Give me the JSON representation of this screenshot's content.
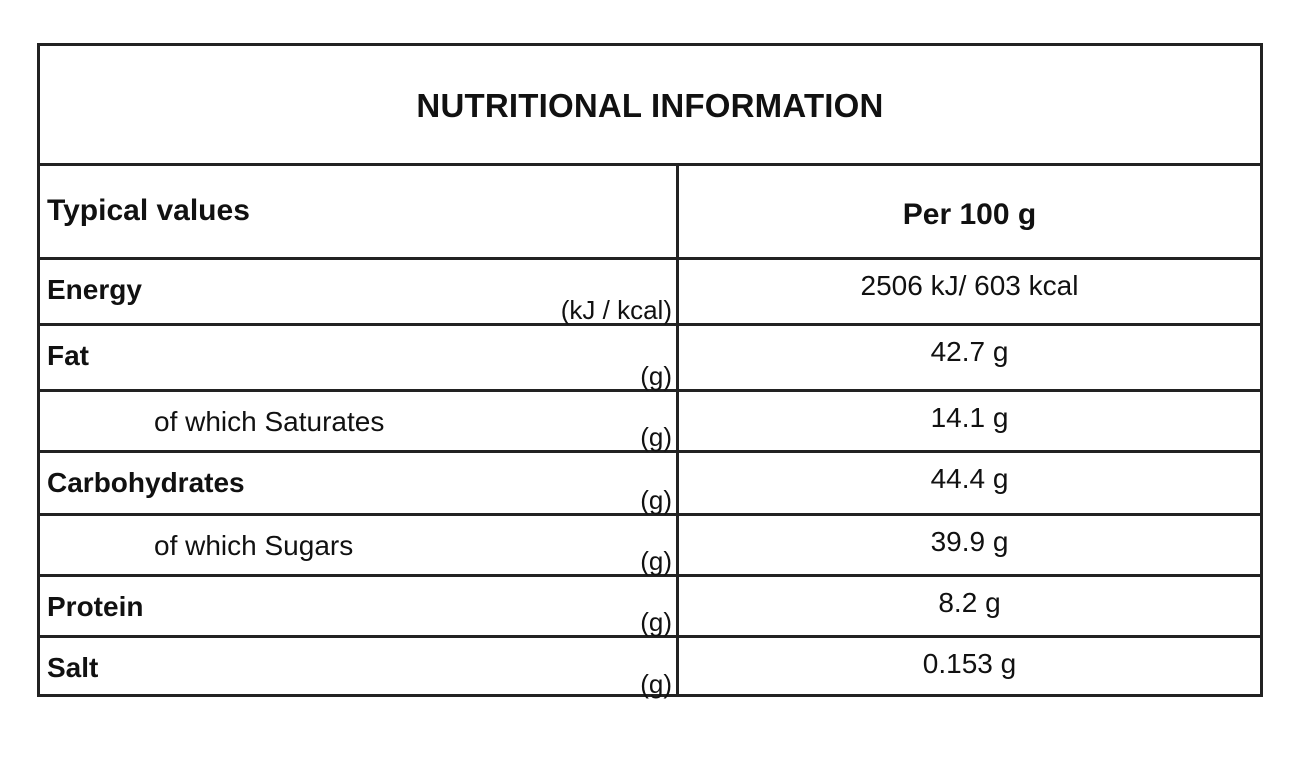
{
  "title": "NUTRITIONAL INFORMATION",
  "header": {
    "label": "Typical values",
    "value": "Per 100 g"
  },
  "rows": [
    {
      "label": "Energy",
      "unit": "(kJ / kcal)",
      "value": "2506 kJ/ 603 kcal",
      "sub": false
    },
    {
      "label": "Fat",
      "unit": "(g)",
      "value": "42.7 g",
      "sub": false
    },
    {
      "label": "of which Saturates",
      "unit": "(g)",
      "value": "14.1 g",
      "sub": true
    },
    {
      "label": "Carbohydrates",
      "unit": "(g)",
      "value": "44.4 g",
      "sub": false
    },
    {
      "label": "of which Sugars",
      "unit": "(g)",
      "value": "39.9 g",
      "sub": true
    },
    {
      "label": "Protein",
      "unit": "(g)",
      "value": "8.2 g",
      "sub": false
    },
    {
      "label": "Salt",
      "unit": "(g)",
      "value": "0.153 g",
      "sub": false
    }
  ]
}
